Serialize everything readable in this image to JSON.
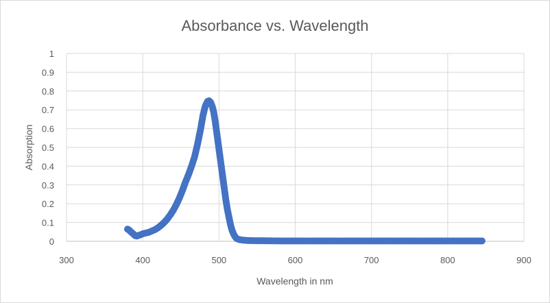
{
  "chart_data": {
    "type": "scatter",
    "title": "Absorbance vs. Wavelength",
    "xlabel": "Wavelength in nm",
    "ylabel": "Absorption",
    "xlim": [
      300,
      900
    ],
    "ylim": [
      0,
      1
    ],
    "x_ticks": [
      "300",
      "400",
      "500",
      "600",
      "700",
      "800",
      "900"
    ],
    "y_ticks": [
      "0",
      "0.1",
      "0.2",
      "0.3",
      "0.4",
      "0.5",
      "0.6",
      "0.7",
      "0.8",
      "0.9",
      "1"
    ],
    "grid": true,
    "legend": "none",
    "marker_color": "#4472c4",
    "series": [
      {
        "points": [
          [
            380,
            0.065
          ],
          [
            382,
            0.06
          ],
          [
            384,
            0.052
          ],
          [
            386,
            0.045
          ],
          [
            388,
            0.038
          ],
          [
            390,
            0.03
          ],
          [
            392,
            0.028
          ],
          [
            395,
            0.032
          ],
          [
            398,
            0.036
          ],
          [
            400,
            0.04
          ],
          [
            404,
            0.044
          ],
          [
            408,
            0.048
          ],
          [
            412,
            0.055
          ],
          [
            416,
            0.062
          ],
          [
            420,
            0.072
          ],
          [
            424,
            0.085
          ],
          [
            428,
            0.1
          ],
          [
            432,
            0.118
          ],
          [
            436,
            0.14
          ],
          [
            440,
            0.165
          ],
          [
            444,
            0.195
          ],
          [
            448,
            0.23
          ],
          [
            452,
            0.27
          ],
          [
            456,
            0.315
          ],
          [
            460,
            0.355
          ],
          [
            464,
            0.4
          ],
          [
            468,
            0.45
          ],
          [
            472,
            0.52
          ],
          [
            476,
            0.6
          ],
          [
            479,
            0.67
          ],
          [
            482,
            0.72
          ],
          [
            485,
            0.745
          ],
          [
            487,
            0.748
          ],
          [
            489,
            0.74
          ],
          [
            491,
            0.72
          ],
          [
            493,
            0.69
          ],
          [
            495,
            0.64
          ],
          [
            497,
            0.58
          ],
          [
            499,
            0.52
          ],
          [
            501,
            0.46
          ],
          [
            503,
            0.4
          ],
          [
            505,
            0.34
          ],
          [
            507,
            0.28
          ],
          [
            509,
            0.22
          ],
          [
            511,
            0.17
          ],
          [
            513,
            0.13
          ],
          [
            515,
            0.09
          ],
          [
            517,
            0.06
          ],
          [
            519,
            0.04
          ],
          [
            521,
            0.025
          ],
          [
            523,
            0.015
          ],
          [
            526,
            0.01
          ],
          [
            530,
            0.007
          ],
          [
            535,
            0.005
          ],
          [
            540,
            0.004
          ],
          [
            550,
            0.003
          ],
          [
            560,
            0.003
          ],
          [
            580,
            0.002
          ],
          [
            600,
            0.002
          ],
          [
            620,
            0.002
          ],
          [
            640,
            0.002
          ],
          [
            660,
            0.002
          ],
          [
            680,
            0.002
          ],
          [
            700,
            0.002
          ],
          [
            720,
            0.002
          ],
          [
            740,
            0.002
          ],
          [
            760,
            0.002
          ],
          [
            780,
            0.002
          ],
          [
            800,
            0.002
          ],
          [
            820,
            0.002
          ],
          [
            840,
            0.002
          ],
          [
            845,
            0.002
          ]
        ]
      }
    ]
  }
}
